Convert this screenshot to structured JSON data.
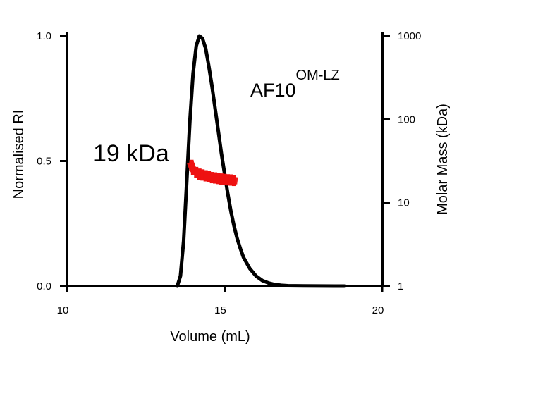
{
  "chart_data": {
    "type": "line",
    "xlabel": "Volume (mL)",
    "ylabel_left": "Normalised RI",
    "ylabel_right": "Molar Mass (kDa)",
    "xlim": [
      10,
      20
    ],
    "ylim_left": [
      0.0,
      1.0
    ],
    "ylim_right": [
      1,
      1000
    ],
    "y_right_scale": "log",
    "x_ticks": [
      "10",
      "15",
      "20"
    ],
    "y_left_ticks": [
      "0.0",
      "0.5",
      "1.0"
    ],
    "y_right_ticks": [
      "1",
      "10",
      "100",
      "1000"
    ],
    "annotations": {
      "sample_base": "AF10",
      "sample_sup": "OM-LZ",
      "mass_label": "19 kDa"
    },
    "series": [
      {
        "axis": "left",
        "color": "#000000",
        "x": [
          13.5,
          13.6,
          13.7,
          13.8,
          13.9,
          14.0,
          14.1,
          14.2,
          14.3,
          14.4,
          14.5,
          14.6,
          14.7,
          14.8,
          14.9,
          15.0,
          15.1,
          15.2,
          15.3,
          15.4,
          15.5,
          15.6,
          15.8,
          16.0,
          16.2,
          16.4,
          16.6,
          16.8,
          17.0,
          17.5,
          18.0,
          18.5,
          18.8
        ],
        "y": [
          0.0,
          0.04,
          0.18,
          0.42,
          0.66,
          0.85,
          0.96,
          1.0,
          0.99,
          0.95,
          0.88,
          0.8,
          0.71,
          0.62,
          0.53,
          0.45,
          0.37,
          0.3,
          0.24,
          0.19,
          0.15,
          0.115,
          0.07,
          0.04,
          0.022,
          0.012,
          0.006,
          0.003,
          0.0015,
          0.0005,
          0.0002,
          0.0001,
          0.0
        ]
      },
      {
        "axis": "right",
        "color": "#ee1111",
        "x": [
          13.95,
          14.0,
          14.1,
          14.2,
          14.3,
          14.4,
          14.5,
          14.6,
          14.7,
          14.8,
          14.9,
          15.0,
          15.1,
          15.2,
          15.3
        ],
        "y": [
          28,
          25,
          23,
          22,
          21.5,
          21,
          20.5,
          20,
          19.8,
          19.5,
          19.2,
          19,
          18.8,
          18.7,
          18.5
        ]
      }
    ]
  }
}
